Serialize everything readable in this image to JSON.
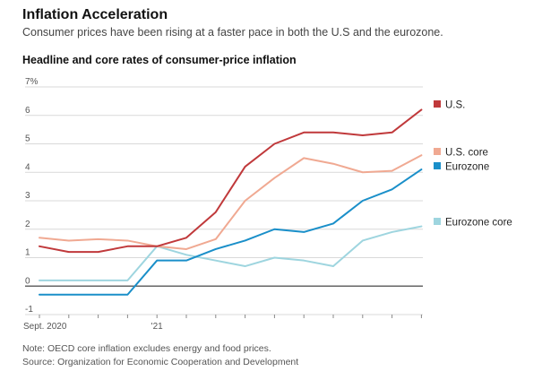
{
  "header": {
    "title": "Inflation Acceleration",
    "subtitle": "Consumer prices have been rising at a faster pace in both the U.S and the eurozone."
  },
  "footer": {
    "note": "Note: OECD core inflation excludes energy and food prices.",
    "source": "Source: Organization for Economic Cooperation and Development"
  },
  "colors": {
    "us": "#c0393b",
    "us_core": "#f0a992",
    "eurozone": "#1a8fc9",
    "eurozone_core": "#9ed5df",
    "grid": "#d9d9d9",
    "zero_line": "#666666"
  },
  "chart_data": {
    "type": "line",
    "title": "Headline and core rates of consumer-price inflation",
    "x": [
      "2020-09",
      "2020-10",
      "2020-11",
      "2020-12",
      "2021-01",
      "2021-02",
      "2021-03",
      "2021-04",
      "2021-05",
      "2021-06",
      "2021-07",
      "2021-08",
      "2021-09",
      "2021-10"
    ],
    "x_tick_labels": [
      {
        "x": "2020-09",
        "label": "Sept. 2020"
      },
      {
        "x": "2021-01",
        "label": "'21"
      }
    ],
    "ylim": [
      -1,
      7
    ],
    "y_ticks": [
      -1,
      0,
      1,
      2,
      3,
      4,
      5,
      6,
      7
    ],
    "y_top_label": "7%",
    "grid": true,
    "legend_placement": "right",
    "series": [
      {
        "name": "U.S.",
        "color_key": "us",
        "values": [
          1.4,
          1.2,
          1.2,
          1.4,
          1.4,
          1.7,
          2.6,
          4.2,
          5.0,
          5.4,
          5.4,
          5.3,
          5.4,
          6.2
        ]
      },
      {
        "name": "U.S. core",
        "color_key": "us_core",
        "values": [
          1.7,
          1.6,
          1.65,
          1.6,
          1.4,
          1.3,
          1.65,
          3.0,
          3.8,
          4.5,
          4.3,
          4.0,
          4.05,
          4.6
        ]
      },
      {
        "name": "Eurozone",
        "color_key": "eurozone",
        "values": [
          -0.3,
          -0.3,
          -0.3,
          -0.3,
          0.9,
          0.9,
          1.3,
          1.6,
          2.0,
          1.9,
          2.2,
          3.0,
          3.4,
          4.1
        ]
      },
      {
        "name": "Eurozone core",
        "color_key": "eurozone_core",
        "values": [
          0.2,
          0.2,
          0.2,
          0.2,
          1.4,
          1.1,
          0.9,
          0.7,
          1.0,
          0.9,
          0.7,
          1.6,
          1.9,
          2.1
        ]
      }
    ]
  }
}
